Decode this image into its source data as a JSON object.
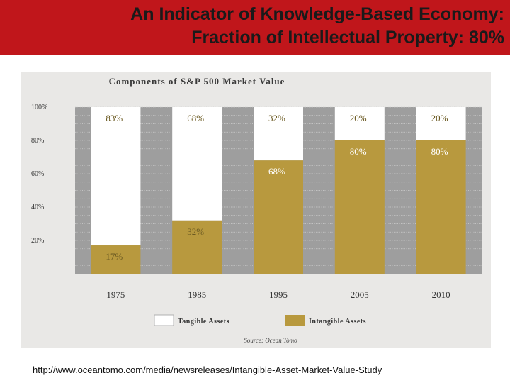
{
  "slide": {
    "title_line1": "An Indicator of Knowledge-Based Economy:",
    "title_line2": "Fraction of Intellectual Property: 80%",
    "source_url": "http://www.oceantomo.com/media/newsreleases/Intangible-Asset-Market-Value-Study"
  },
  "colors": {
    "title_band": "#c0161b",
    "panel": "#e9e8e6",
    "plot_bg": "#9e9e9e",
    "tangible": "#ffffff",
    "intangible": "#b8993e",
    "label_dark": "#6b5a22",
    "label_light": "#ffffff"
  },
  "chart_data": {
    "type": "bar",
    "stacked": true,
    "title": "Components of S&P 500 Market Value",
    "categories": [
      "1975",
      "1985",
      "1995",
      "2005",
      "2010"
    ],
    "series": [
      {
        "name": "Intangible Assets",
        "values": [
          17,
          32,
          68,
          80,
          80
        ]
      },
      {
        "name": "Tangible Assets",
        "values": [
          83,
          68,
          32,
          20,
          20
        ]
      }
    ],
    "value_labels": {
      "intangible": [
        "17%",
        "32%",
        "68%",
        "80%",
        "80%"
      ],
      "tangible": [
        "83%",
        "68%",
        "32%",
        "20%",
        "20%"
      ]
    },
    "y_ticks": [
      "20%",
      "40%",
      "60%",
      "80%",
      "100%"
    ],
    "y_tick_values": [
      20,
      40,
      60,
      80,
      100
    ],
    "ylim": [
      0,
      100
    ],
    "grid": true,
    "legend": {
      "placement": "bottom",
      "tangible_label": "Tangible Assets",
      "intangible_label": "Intangible Assets"
    },
    "source_note": "Source: Ocean Tomo"
  }
}
